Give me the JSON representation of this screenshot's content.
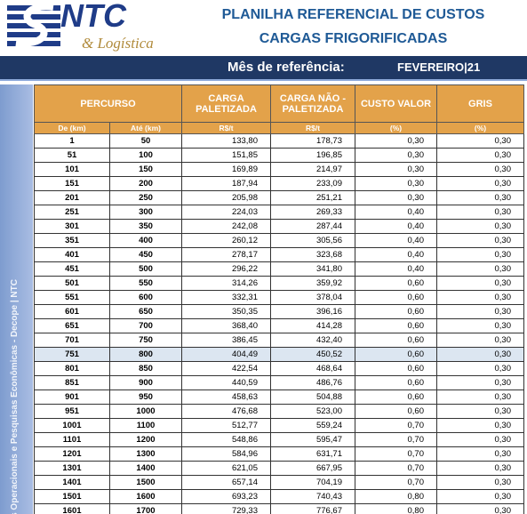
{
  "logo": {
    "name": "NTC",
    "tagline": "& Logística"
  },
  "header": {
    "title_line1": "PLANILHA REFERENCIAL DE CUSTOS",
    "title_line2": "CARGAS FRIGORIFICADAS"
  },
  "reference": {
    "label": "Mês de referência:",
    "value": "FEVEREIRO|21"
  },
  "side_text": "s Operacionais e Pesquisas Econômicas - Decope | NTC",
  "table": {
    "group_header": "PERCURSO",
    "headers": [
      "CARGA PALETIZADA",
      "CARGA NÃO - PALETIZADA",
      "CUSTO VALOR",
      "GRIS"
    ],
    "subheaders": [
      "De (km)",
      "Até (km)",
      "R$/t",
      "R$/t",
      "(%)",
      "(%)"
    ],
    "rows": [
      [
        "1",
        "50",
        "133,80",
        "178,73",
        "0,30",
        "0,30"
      ],
      [
        "51",
        "100",
        "151,85",
        "196,85",
        "0,30",
        "0,30"
      ],
      [
        "101",
        "150",
        "169,89",
        "214,97",
        "0,30",
        "0,30"
      ],
      [
        "151",
        "200",
        "187,94",
        "233,09",
        "0,30",
        "0,30"
      ],
      [
        "201",
        "250",
        "205,98",
        "251,21",
        "0,30",
        "0,30"
      ],
      [
        "251",
        "300",
        "224,03",
        "269,33",
        "0,40",
        "0,30"
      ],
      [
        "301",
        "350",
        "242,08",
        "287,44",
        "0,40",
        "0,30"
      ],
      [
        "351",
        "400",
        "260,12",
        "305,56",
        "0,40",
        "0,30"
      ],
      [
        "401",
        "450",
        "278,17",
        "323,68",
        "0,40",
        "0,30"
      ],
      [
        "451",
        "500",
        "296,22",
        "341,80",
        "0,40",
        "0,30"
      ],
      [
        "501",
        "550",
        "314,26",
        "359,92",
        "0,60",
        "0,30"
      ],
      [
        "551",
        "600",
        "332,31",
        "378,04",
        "0,60",
        "0,30"
      ],
      [
        "601",
        "650",
        "350,35",
        "396,16",
        "0,60",
        "0,30"
      ],
      [
        "651",
        "700",
        "368,40",
        "414,28",
        "0,60",
        "0,30"
      ],
      [
        "701",
        "750",
        "386,45",
        "432,40",
        "0,60",
        "0,30"
      ],
      [
        "751",
        "800",
        "404,49",
        "450,52",
        "0,60",
        "0,30"
      ],
      [
        "801",
        "850",
        "422,54",
        "468,64",
        "0,60",
        "0,30"
      ],
      [
        "851",
        "900",
        "440,59",
        "486,76",
        "0,60",
        "0,30"
      ],
      [
        "901",
        "950",
        "458,63",
        "504,88",
        "0,60",
        "0,30"
      ],
      [
        "951",
        "1000",
        "476,68",
        "523,00",
        "0,60",
        "0,30"
      ],
      [
        "1001",
        "1100",
        "512,77",
        "559,24",
        "0,70",
        "0,30"
      ],
      [
        "1101",
        "1200",
        "548,86",
        "595,47",
        "0,70",
        "0,30"
      ],
      [
        "1201",
        "1300",
        "584,96",
        "631,71",
        "0,70",
        "0,30"
      ],
      [
        "1301",
        "1400",
        "621,05",
        "667,95",
        "0,70",
        "0,30"
      ],
      [
        "1401",
        "1500",
        "657,14",
        "704,19",
        "0,70",
        "0,30"
      ],
      [
        "1501",
        "1600",
        "693,23",
        "740,43",
        "0,80",
        "0,30"
      ],
      [
        "1601",
        "1700",
        "729,33",
        "776,67",
        "0,80",
        "0,30"
      ]
    ]
  }
}
